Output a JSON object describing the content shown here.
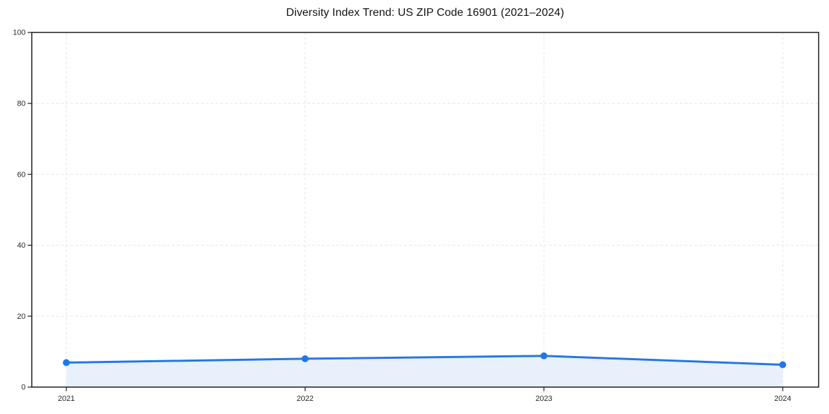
{
  "chart_data": {
    "type": "line",
    "title": "Diversity Index Trend: US ZIP Code 16901 (2021–2024)",
    "categories": [
      "2021",
      "2022",
      "2023",
      "2024"
    ],
    "series": [
      {
        "name": "Diversity Index",
        "values": [
          6.9,
          8.0,
          8.8,
          6.3
        ]
      }
    ],
    "xlabel": "",
    "ylabel": "",
    "ylim": [
      0,
      100
    ],
    "yticks": [
      0,
      20,
      40,
      60,
      80,
      100
    ],
    "grid": true,
    "grid_style": "dashed",
    "legend_position": "none",
    "area_fill": true,
    "marker": "circle",
    "colors": {
      "line": "#2376E8",
      "area": "#E8F0FC",
      "grid": "#e6e6e6",
      "spine": "#1a1a1a",
      "tick_label": "#262626",
      "title": "#111111",
      "background": "#ffffff"
    }
  }
}
